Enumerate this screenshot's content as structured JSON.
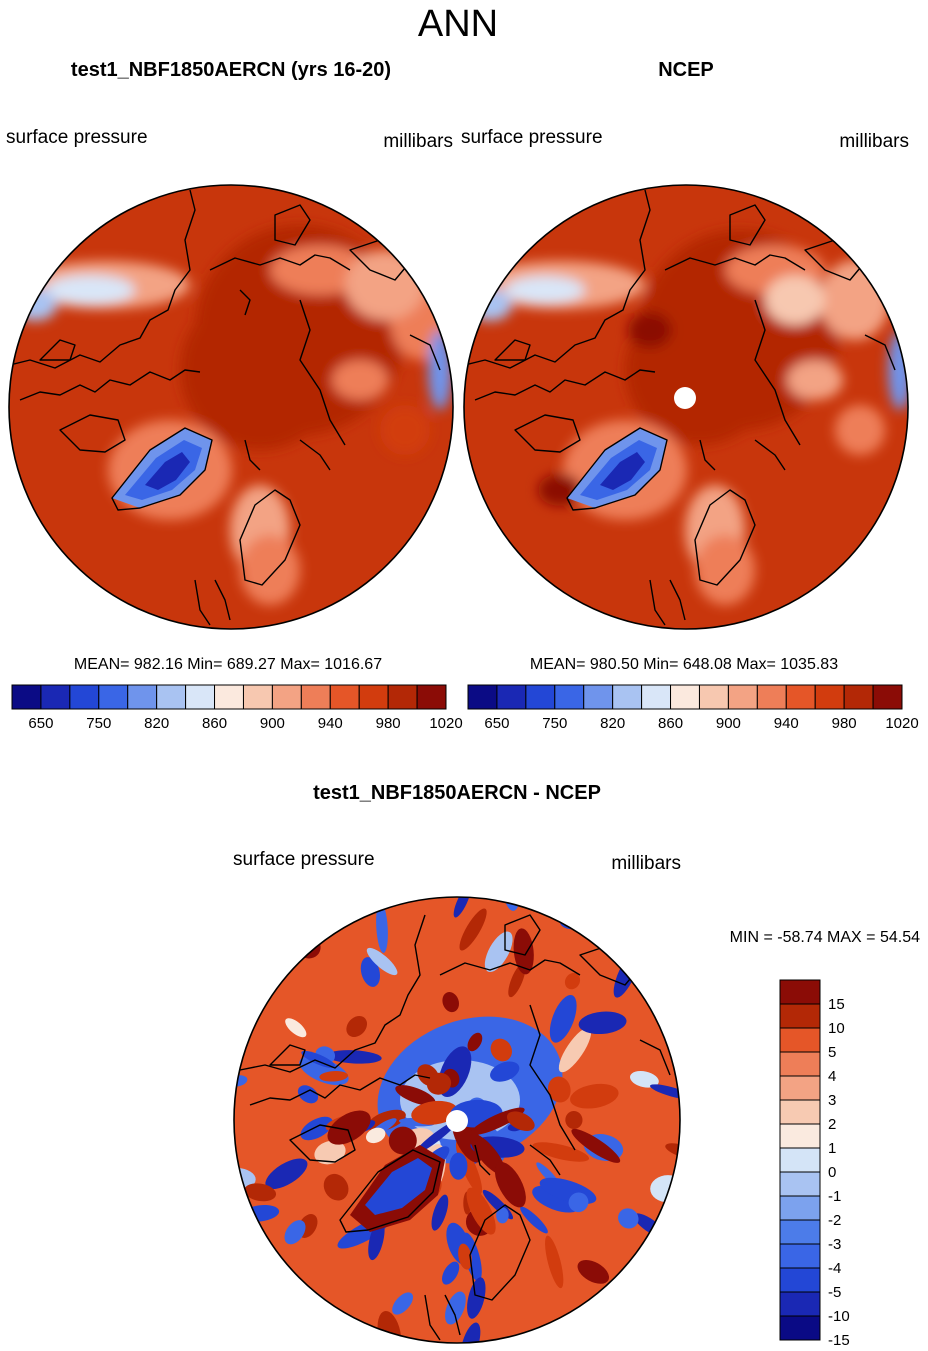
{
  "page_title": "ANN",
  "panels": [
    {
      "title": "test1_NBF1850AERCN (yrs 16-20)",
      "variable": "surface pressure",
      "units": "millibars",
      "stats": "MEAN= 982.16  Min= 689.27  Max= 1016.67",
      "colorbar_labels": [
        "650",
        "750",
        "820",
        "860",
        "900",
        "940",
        "980",
        "1020"
      ]
    },
    {
      "title": "NCEP",
      "variable": "surface pressure",
      "units": "millibars",
      "stats": "MEAN= 980.50  Min= 648.08  Max= 1035.83",
      "colorbar_labels": [
        "650",
        "750",
        "820",
        "860",
        "900",
        "940",
        "980",
        "1020"
      ]
    }
  ],
  "diff_panel": {
    "title": "test1_NBF1850AERCN - NCEP",
    "variable": "surface pressure",
    "units": "millibars",
    "minmax": "MIN = -58.74 MAX =  54.54",
    "colorbar_labels": [
      "15",
      "10",
      "5",
      "4",
      "3",
      "2",
      "1",
      "0",
      "-1",
      "-2",
      "-3",
      "-4",
      "-5",
      "-10",
      "-15"
    ]
  },
  "colors": {
    "abs_scale": [
      "#0b0b85",
      "#1a28b4",
      "#2347d6",
      "#3a66e6",
      "#6f94ec",
      "#a9c3f2",
      "#d9e6f8",
      "#fbe9de",
      "#f7c8b0",
      "#f3a384",
      "#ee7e58",
      "#e55628",
      "#d23c0e",
      "#b32806",
      "#8b0c06"
    ],
    "diff_scale": [
      "#0a0a85",
      "#1a28b4",
      "#2347d6",
      "#3a66e6",
      "#4c7ce9",
      "#7ca2ee",
      "#a9c3f2",
      "#d4e4f7",
      "#faeadf",
      "#f7cab2",
      "#f3a384",
      "#ee7e58",
      "#e55628",
      "#b32806",
      "#8b0c06"
    ],
    "field_base": "#c8360c",
    "land_outline": "#000000"
  }
}
